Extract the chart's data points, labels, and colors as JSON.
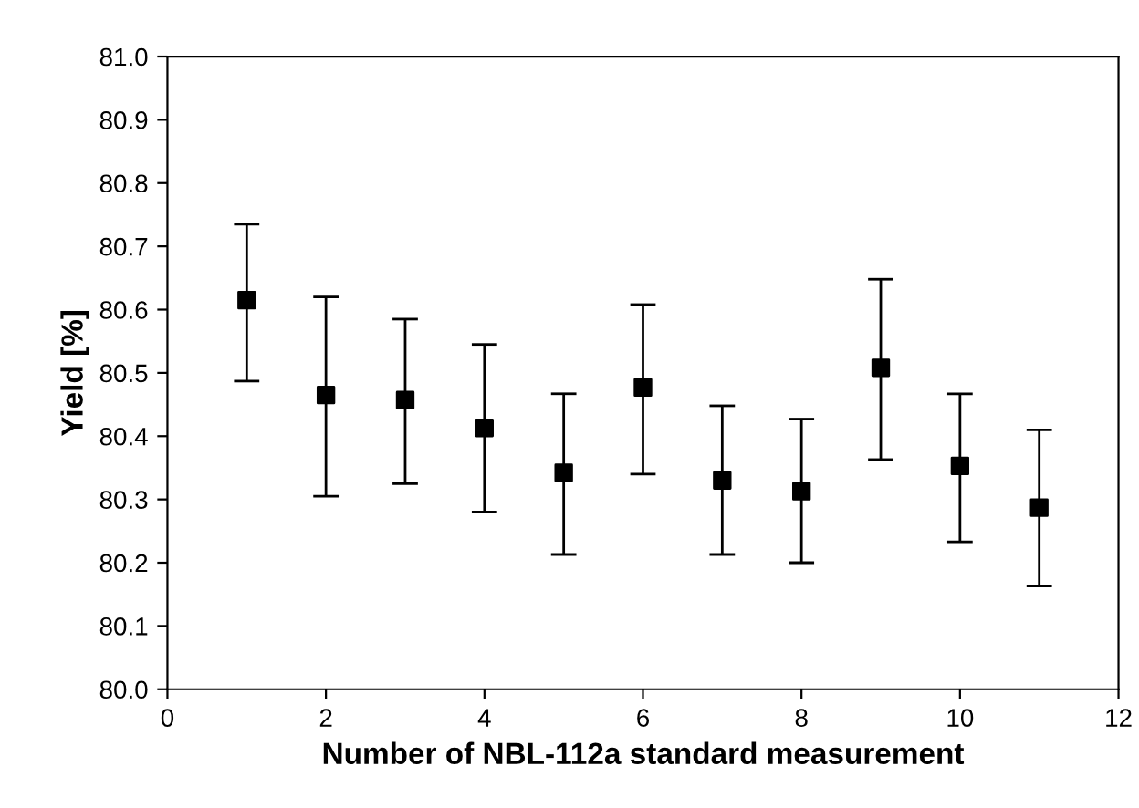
{
  "chart_data": {
    "type": "scatter",
    "xlabel": "Number of NBL-112a standard measurement",
    "ylabel": "Yield [%]",
    "x": [
      1,
      2,
      3,
      4,
      5,
      6,
      7,
      8,
      9,
      10,
      11
    ],
    "series": [
      {
        "color": "#000000",
        "values": [
          80.615,
          80.465,
          80.457,
          80.413,
          80.342,
          80.477,
          80.33,
          80.313,
          80.508,
          80.353,
          80.287
        ],
        "errors": [
          [
            80.487,
            80.735
          ],
          [
            80.305,
            80.62
          ],
          [
            80.325,
            80.585
          ],
          [
            80.28,
            80.545
          ],
          [
            80.213,
            80.467
          ],
          [
            80.34,
            80.608
          ],
          [
            80.213,
            80.448
          ],
          [
            80.2,
            80.427
          ],
          [
            80.363,
            80.648
          ],
          [
            80.233,
            80.467
          ],
          [
            80.163,
            80.41
          ]
        ]
      }
    ],
    "xlim": [
      0,
      12
    ],
    "xticks": [
      0,
      2,
      4,
      6,
      8,
      10,
      12
    ],
    "ylim": [
      80.0,
      81.0
    ],
    "yticks": [
      {
        "value": 80.0,
        "label": "80.0"
      },
      80.1,
      80.2,
      80.3,
      80.4,
      80.5,
      80.6,
      80.7,
      80.8,
      80.9,
      {
        "value": 81.0,
        "label": "81.0"
      }
    ],
    "marker": "square",
    "grid": false,
    "legend": false
  }
}
